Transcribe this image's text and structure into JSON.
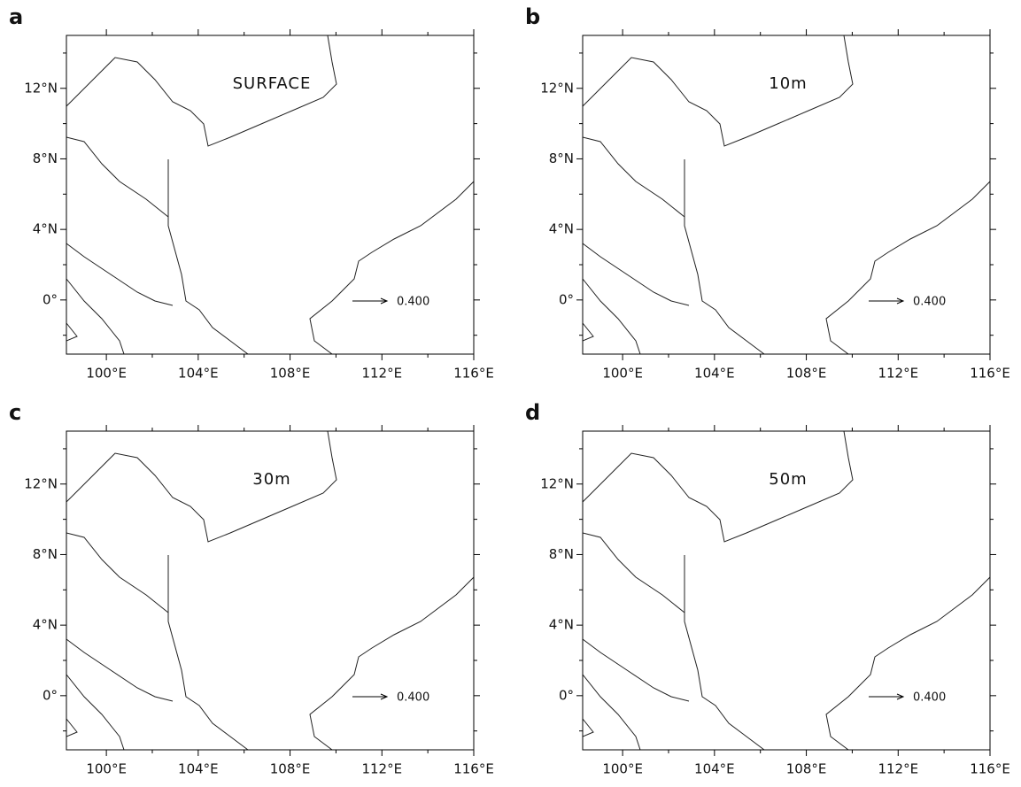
{
  "chart_data": [
    {
      "type": "quiver",
      "panel_label": "a",
      "annotation": "SURFACE",
      "reference_vector": {
        "value": 0.4,
        "label": "0.400"
      },
      "xlim": [
        98.26,
        116
      ],
      "ylim": [
        -3.07,
        15
      ],
      "xticks": [
        {
          "value": 100,
          "label": "100°E"
        },
        {
          "value": 104,
          "label": "104°E"
        },
        {
          "value": 108,
          "label": "108°E"
        },
        {
          "value": 112,
          "label": "112°E"
        },
        {
          "value": 116,
          "label": "116°E"
        }
      ],
      "yticks": [
        {
          "value": 0,
          "label": "0°"
        },
        {
          "value": 4,
          "label": "4°N"
        },
        {
          "value": 8,
          "label": "8°N"
        },
        {
          "value": 12,
          "label": "12°N"
        }
      ],
      "xminorticks": [
        102,
        106,
        110,
        114
      ],
      "yminorticks": [
        -2,
        2,
        6,
        10,
        14
      ]
    },
    {
      "type": "quiver",
      "panel_label": "b",
      "annotation": "10m",
      "reference_vector": {
        "value": 0.4,
        "label": "0.400"
      },
      "xlim": [
        98.26,
        116
      ],
      "ylim": [
        -3.07,
        15
      ],
      "xticks": [
        {
          "value": 100,
          "label": "100°E"
        },
        {
          "value": 104,
          "label": "104°E"
        },
        {
          "value": 108,
          "label": "108°E"
        },
        {
          "value": 112,
          "label": "112°E"
        },
        {
          "value": 116,
          "label": "116°E"
        }
      ],
      "yticks": [
        {
          "value": 0,
          "label": "0°"
        },
        {
          "value": 4,
          "label": "4°N"
        },
        {
          "value": 8,
          "label": "8°N"
        },
        {
          "value": 12,
          "label": "12°N"
        }
      ],
      "xminorticks": [
        102,
        106,
        110,
        114
      ],
      "yminorticks": [
        -2,
        2,
        6,
        10,
        14
      ]
    },
    {
      "type": "quiver",
      "panel_label": "c",
      "annotation": "30m",
      "reference_vector": {
        "value": 0.4,
        "label": "0.400"
      },
      "xlim": [
        98.26,
        116
      ],
      "ylim": [
        -3.07,
        15
      ],
      "xticks": [
        {
          "value": 100,
          "label": "100°E"
        },
        {
          "value": 104,
          "label": "104°E"
        },
        {
          "value": 108,
          "label": "108°E"
        },
        {
          "value": 112,
          "label": "112°E"
        },
        {
          "value": 116,
          "label": "116°E"
        }
      ],
      "yticks": [
        {
          "value": 0,
          "label": "0°"
        },
        {
          "value": 4,
          "label": "4°N"
        },
        {
          "value": 8,
          "label": "8°N"
        },
        {
          "value": 12,
          "label": "12°N"
        }
      ],
      "xminorticks": [
        102,
        106,
        110,
        114
      ],
      "yminorticks": [
        -2,
        2,
        6,
        10,
        14
      ]
    },
    {
      "type": "quiver",
      "panel_label": "d",
      "annotation": "50m",
      "reference_vector": {
        "value": 0.4,
        "label": "0.400"
      },
      "xlim": [
        98.26,
        116
      ],
      "ylim": [
        -3.07,
        15
      ],
      "xticks": [
        {
          "value": 100,
          "label": "100°E"
        },
        {
          "value": 104,
          "label": "104°E"
        },
        {
          "value": 108,
          "label": "108°E"
        },
        {
          "value": 112,
          "label": "112°E"
        },
        {
          "value": 116,
          "label": "116°E"
        }
      ],
      "yticks": [
        {
          "value": 0,
          "label": "0°"
        },
        {
          "value": 4,
          "label": "4°N"
        },
        {
          "value": 8,
          "label": "8°N"
        },
        {
          "value": 12,
          "label": "12°N"
        }
      ],
      "xminorticks": [
        102,
        106,
        110,
        114
      ],
      "yminorticks": [
        -2,
        2,
        6,
        10,
        14
      ]
    }
  ]
}
